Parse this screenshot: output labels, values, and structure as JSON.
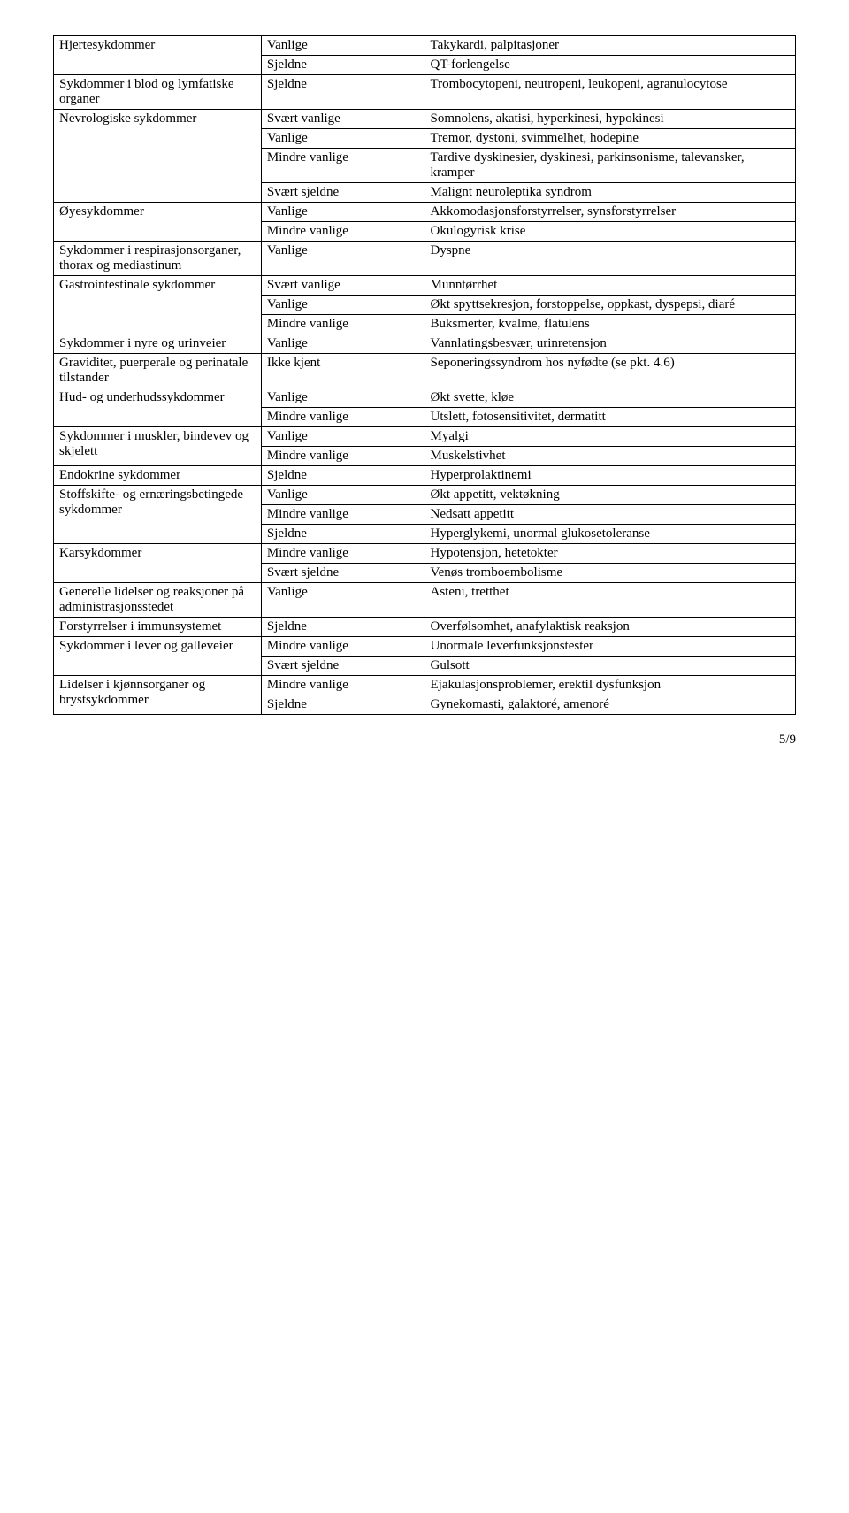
{
  "table": {
    "rows": [
      {
        "c1": "Hjertesykdommer",
        "c1rows": 2,
        "c2": "Vanlige",
        "c3": "Takykardi, palpitasjoner"
      },
      {
        "c2": "Sjeldne",
        "c3": "QT-forlengelse"
      },
      {
        "c1": "Sykdommer i blod og lymfatiske organer",
        "c2": "Sjeldne",
        "c3": "Trombocytopeni, neutropeni, leukopeni, agranulocytose"
      },
      {
        "c1": "Nevrologiske sykdommer",
        "c1rows": 4,
        "c2": "Svært vanlige",
        "c3": "Somnolens, akatisi, hyperkinesi, hypokinesi"
      },
      {
        "c2": "Vanlige",
        "c3": "Tremor, dystoni, svimmelhet, hodepine"
      },
      {
        "c2": "Mindre vanlige",
        "c3": "Tardive dyskinesier, dyskinesi, parkinsonisme, talevansker, kramper"
      },
      {
        "c2": "Svært sjeldne",
        "c3": "Malignt neuroleptika syndrom"
      },
      {
        "c1": "Øyesykdommer",
        "c1rows": 2,
        "c2": "Vanlige",
        "c3": "Akkomodasjonsforstyrrelser, synsforstyrrelser"
      },
      {
        "c2": "Mindre vanlige",
        "c3": "Okulogyrisk krise"
      },
      {
        "c1": "Sykdommer i respirasjonsorganer, thorax og mediastinum",
        "c2": "Vanlige",
        "c3": "Dyspne"
      },
      {
        "c1": "Gastrointestinale sykdommer",
        "c1rows": 3,
        "c2": "Svært vanlige",
        "c3": "Munntørrhet"
      },
      {
        "c2": "Vanlige",
        "c3": "Økt spyttsekresjon, forstoppelse, oppkast, dyspepsi, diaré"
      },
      {
        "c2": "Mindre vanlige",
        "c3": "Buksmerter, kvalme, flatulens"
      },
      {
        "c1": "Sykdommer i nyre og urinveier",
        "c2": "Vanlige",
        "c3": "Vannlatingsbesvær, urinretensjon"
      },
      {
        "c1": "Graviditet, puerperale og perinatale tilstander",
        "c2": "Ikke kjent",
        "c3": "Seponeringssyndrom hos nyfødte (se pkt. 4.6)"
      },
      {
        "c1": "Hud- og underhudssykdommer",
        "c1rows": 2,
        "c2": "Vanlige",
        "c3": "Økt svette, kløe"
      },
      {
        "c2": "Mindre vanlige",
        "c3": "Utslett, fotosensitivitet, dermatitt"
      },
      {
        "c1": "Sykdommer i muskler, bindevev og skjelett",
        "c1rows": 2,
        "c2": "Vanlige",
        "c3": "Myalgi"
      },
      {
        "c2": "Mindre vanlige",
        "c3": "Muskelstivhet"
      },
      {
        "c1": "Endokrine sykdommer",
        "c2": "Sjeldne",
        "c3": "Hyperprolaktinemi"
      },
      {
        "c1": "Stoffskifte- og ernæringsbetingede sykdommer",
        "c1rows": 3,
        "c2": "Vanlige",
        "c3": "Økt appetitt, vektøkning"
      },
      {
        "c2": "Mindre vanlige",
        "c3": "Nedsatt appetitt"
      },
      {
        "c2": "Sjeldne",
        "c3": "Hyperglykemi, unormal glukosetoleranse"
      },
      {
        "c1": "Karsykdommer",
        "c1rows": 2,
        "c2": "Mindre vanlige",
        "c3": "Hypotensjon, hetetokter"
      },
      {
        "c2": "Svært sjeldne",
        "c3": "Venøs tromboembolisme"
      },
      {
        "c1": "Generelle lidelser og reaksjoner på administrasjonsstedet",
        "c2": "Vanlige",
        "c3": "Asteni, tretthet"
      },
      {
        "c1": "Forstyrrelser i immunsystemet",
        "c2": "Sjeldne",
        "c3": "Overfølsomhet, anafylaktisk reaksjon"
      },
      {
        "c1": "Sykdommer i lever og galleveier",
        "c1rows": 2,
        "c2": "Mindre vanlige",
        "c3": "Unormale leverfunksjonstester"
      },
      {
        "c2": "Svært sjeldne",
        "c3": "Gulsott"
      },
      {
        "c1": "Lidelser i kjønnsorganer og brystsykdommer",
        "c1rows": 2,
        "c2": "Mindre vanlige",
        "c3": "Ejakulasjonsproblemer, erektil dysfunksjon"
      },
      {
        "c2": "Sjeldne",
        "c3": "Gynekomasti, galaktoré, amenoré"
      }
    ]
  },
  "footer": "5/9"
}
